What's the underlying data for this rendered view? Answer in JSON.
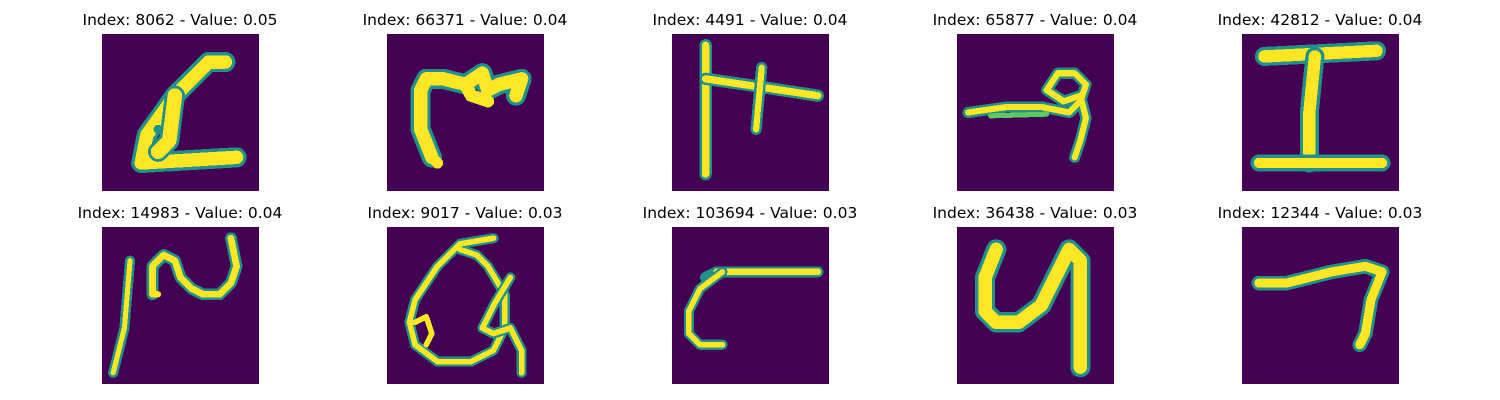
{
  "figure": {
    "colors": {
      "background": "#440154",
      "stroke": "#fde725",
      "edge": "#21918c",
      "edge_light": "#5ec962"
    },
    "panels": [
      {
        "title": "Index: 8062 - Value: 0.05",
        "glyph": "glyph-a"
      },
      {
        "title": "Index: 66371 - Value: 0.04",
        "glyph": "glyph-b"
      },
      {
        "title": "Index: 4491 - Value: 0.04",
        "glyph": "glyph-c"
      },
      {
        "title": "Index: 65877 - Value: 0.04",
        "glyph": "glyph-d"
      },
      {
        "title": "Index: 42812 - Value: 0.04",
        "glyph": "glyph-e"
      },
      {
        "title": "Index: 14983 - Value: 0.04",
        "glyph": "glyph-f"
      },
      {
        "title": "Index: 9017 - Value: 0.03",
        "glyph": "glyph-g"
      },
      {
        "title": "Index: 103694 - Value: 0.03",
        "glyph": "glyph-h"
      },
      {
        "title": "Index: 36438 - Value: 0.03",
        "glyph": "glyph-i"
      },
      {
        "title": "Index: 12344 - Value: 0.03",
        "glyph": "glyph-j"
      }
    ]
  }
}
